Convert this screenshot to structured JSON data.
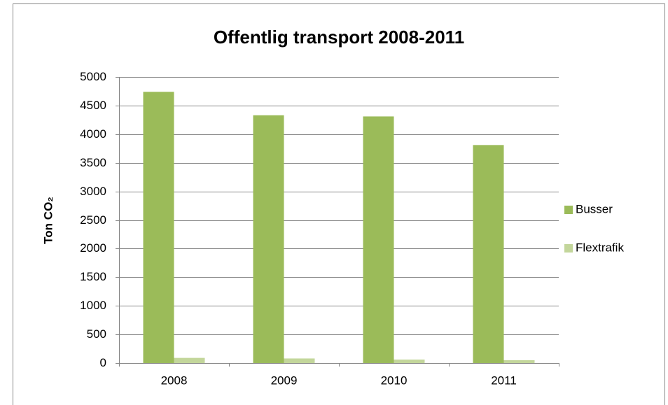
{
  "chart_data": {
    "type": "bar",
    "title": "Offentlig transport 2008-2011",
    "y_label": "Ton CO₂",
    "categories": [
      "2008",
      "2009",
      "2010",
      "2011"
    ],
    "series": [
      {
        "name": "Busser",
        "color": "#9bbb59",
        "values": [
          4740,
          4330,
          4310,
          3810
        ]
      },
      {
        "name": "Flextrafik",
        "color": "#c3d69b",
        "values": [
          90,
          80,
          60,
          50
        ]
      }
    ],
    "ylim": [
      0,
      5000
    ],
    "yticks": [
      0,
      500,
      1000,
      1500,
      2000,
      2500,
      3000,
      3500,
      4000,
      4500,
      5000
    ],
    "grid": true,
    "legend": "right"
  }
}
